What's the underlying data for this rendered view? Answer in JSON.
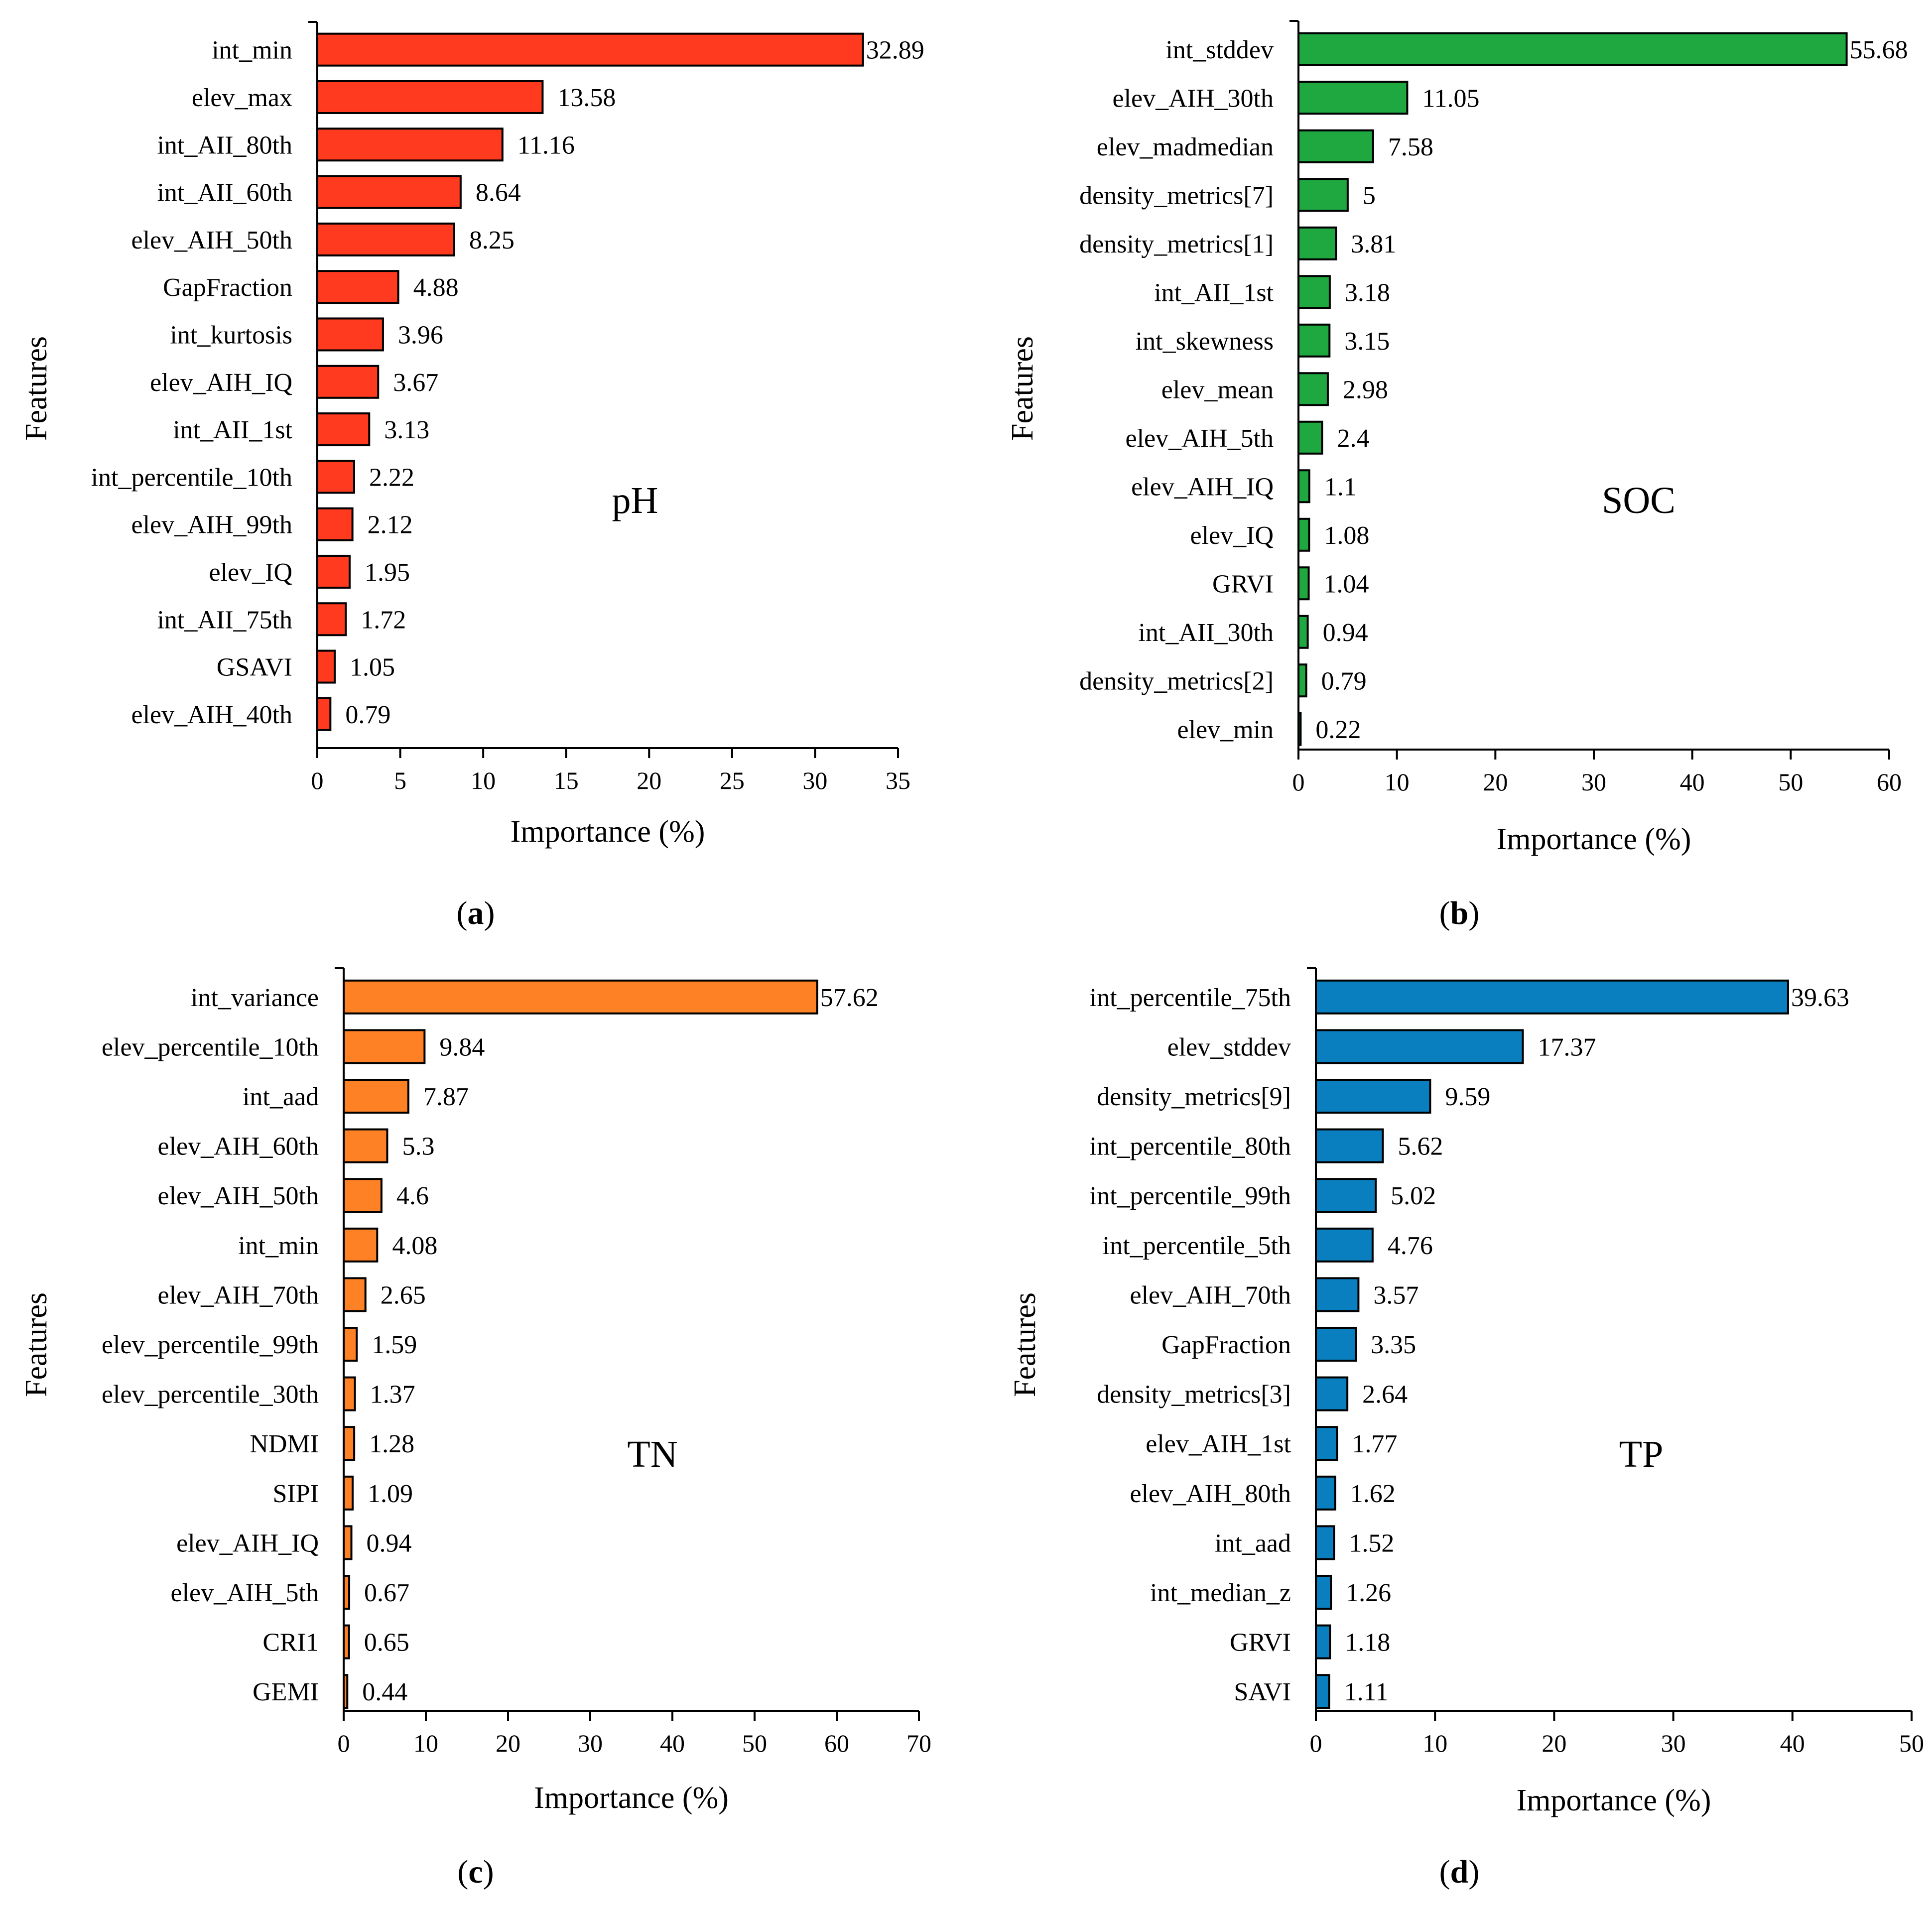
{
  "chart_data": [
    {
      "type": "bar",
      "orientation": "horizontal",
      "panel_label": "pH",
      "caption": "a",
      "color": "#ff3a1f",
      "ylabel": "Features",
      "xlabel": "Importance (%)",
      "xlim": [
        0,
        35
      ],
      "xticks": [
        0,
        5,
        10,
        15,
        20,
        25,
        30,
        35
      ],
      "categories": [
        "int_min",
        "elev_max",
        "int_AII_80th",
        "int_AII_60th",
        "elev_AIH_50th",
        "GapFraction",
        "int_kurtosis",
        "elev_AIH_IQ",
        "int_AII_1st",
        "int_percentile_10th",
        "elev_AIH_99th",
        "elev_IQ",
        "int_AII_75th",
        "GSAVI",
        "elev_AIH_40th"
      ],
      "values": [
        32.89,
        13.58,
        11.16,
        8.64,
        8.25,
        4.88,
        3.96,
        3.67,
        3.13,
        2.22,
        2.12,
        1.95,
        1.72,
        1.05,
        0.79
      ],
      "value_labels": [
        "32.89",
        "13.58",
        "11.16",
        "8.64",
        "8.25",
        "4.88",
        "3.96",
        "3.67",
        "3.13",
        "2.22",
        "2.12",
        "1.95",
        "1.72",
        "1.05",
        "0.79"
      ]
    },
    {
      "type": "bar",
      "orientation": "horizontal",
      "panel_label": "SOC",
      "caption": "b",
      "color": "#1fa83f",
      "ylabel": "Features",
      "xlabel": "Importance (%)",
      "xlim": [
        0,
        60
      ],
      "xticks": [
        0,
        10,
        20,
        30,
        40,
        50,
        60
      ],
      "categories": [
        "int_stddev",
        "elev_AIH_30th",
        "elev_madmedian",
        "density_metrics[7]",
        "density_metrics[1]",
        "int_AII_1st",
        "int_skewness",
        "elev_mean",
        "elev_AIH_5th",
        "elev_AIH_IQ",
        "elev_IQ",
        "GRVI",
        "int_AII_30th",
        "density_metrics[2]",
        "elev_min"
      ],
      "values": [
        55.68,
        11.05,
        7.58,
        5,
        3.81,
        3.18,
        3.15,
        2.98,
        2.4,
        1.1,
        1.08,
        1.04,
        0.94,
        0.79,
        0.22
      ],
      "value_labels": [
        "55.68",
        "11.05",
        "7.58",
        "5",
        "3.81",
        "3.18",
        "3.15",
        "2.98",
        "2.4",
        "1.1",
        "1.08",
        "1.04",
        "0.94",
        "0.79",
        "0.22"
      ]
    },
    {
      "type": "bar",
      "orientation": "horizontal",
      "panel_label": "TN",
      "caption": "c",
      "color": "#ff8125",
      "ylabel": "Features",
      "xlabel": "Importance (%)",
      "xlim": [
        0,
        70
      ],
      "xticks": [
        0,
        10,
        20,
        30,
        40,
        50,
        60,
        70
      ],
      "categories": [
        "int_variance",
        "elev_percentile_10th",
        "int_aad",
        "elev_AIH_60th",
        "elev_AIH_50th",
        "int_min",
        "elev_AIH_70th",
        "elev_percentile_99th",
        "elev_percentile_30th",
        "NDMI",
        "SIPI",
        "elev_AIH_IQ",
        "elev_AIH_5th",
        "CRI1",
        "GEMI"
      ],
      "values": [
        57.62,
        9.84,
        7.87,
        5.3,
        4.6,
        4.08,
        2.65,
        1.59,
        1.37,
        1.28,
        1.09,
        0.94,
        0.67,
        0.65,
        0.44
      ],
      "value_labels": [
        "57.62",
        "9.84",
        "7.87",
        "5.3",
        "4.6",
        "4.08",
        "2.65",
        "1.59",
        "1.37",
        "1.28",
        "1.09",
        "0.94",
        "0.67",
        "0.65",
        "0.44"
      ]
    },
    {
      "type": "bar",
      "orientation": "horizontal",
      "panel_label": "TP",
      "caption": "d",
      "color": "#0a7fc0",
      "ylabel": "Features",
      "xlabel": "Importance (%)",
      "xlim": [
        0,
        50
      ],
      "xticks": [
        0,
        10,
        20,
        30,
        40,
        50
      ],
      "categories": [
        "int_percentile_75th",
        "elev_stddev",
        "density_metrics[9]",
        "int_percentile_80th",
        "int_percentile_99th",
        "int_percentile_5th",
        "elev_AIH_70th",
        "GapFraction",
        "density_metrics[3]",
        "elev_AIH_1st",
        "elev_AIH_80th",
        "int_aad",
        "int_median_z",
        "GRVI",
        "SAVI"
      ],
      "values": [
        39.63,
        17.37,
        9.59,
        5.62,
        5.02,
        4.76,
        3.57,
        3.35,
        2.64,
        1.77,
        1.62,
        1.52,
        1.26,
        1.18,
        1.11
      ],
      "value_labels": [
        "39.63",
        "17.37",
        "9.59",
        "5.62",
        "5.02",
        "4.76",
        "3.57",
        "3.35",
        "2.64",
        "1.77",
        "1.62",
        "1.52",
        "1.26",
        "1.18",
        "1.11"
      ]
    }
  ]
}
